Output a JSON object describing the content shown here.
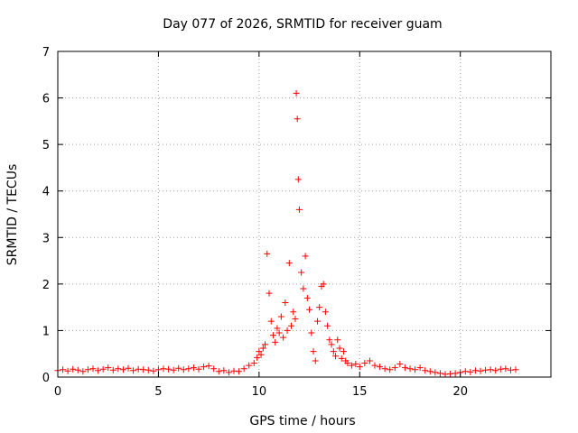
{
  "chart_data": {
    "type": "scatter",
    "title": "Day 077 of 2026, SRMTID for receiver guam",
    "xlabel": "GPS time / hours",
    "ylabel": "SRMTID / TECUs",
    "xlim": [
      0,
      24.5
    ],
    "ylim": [
      0,
      7
    ],
    "xticks": [
      0,
      5,
      10,
      15,
      20
    ],
    "yticks": [
      0,
      1,
      2,
      3,
      4,
      5,
      6,
      7
    ],
    "grid": true,
    "marker": "+",
    "color": "#ff0000",
    "series": [
      {
        "name": "SRMTID",
        "x": [
          0.0,
          0.25,
          0.5,
          0.75,
          1.0,
          1.25,
          1.5,
          1.75,
          2.0,
          2.25,
          2.5,
          2.75,
          3.0,
          3.25,
          3.5,
          3.75,
          4.0,
          4.25,
          4.5,
          4.75,
          5.0,
          5.25,
          5.5,
          5.75,
          6.0,
          6.25,
          6.5,
          6.75,
          7.0,
          7.25,
          7.5,
          7.75,
          8.0,
          8.25,
          8.5,
          8.75,
          9.0,
          9.25,
          9.5,
          9.75,
          9.9,
          10.0,
          10.1,
          10.2,
          10.3,
          10.4,
          10.5,
          10.6,
          10.7,
          10.8,
          10.9,
          11.0,
          11.1,
          11.2,
          11.3,
          11.4,
          11.5,
          11.6,
          11.7,
          11.8,
          11.85,
          11.9,
          11.95,
          12.0,
          12.1,
          12.2,
          12.3,
          12.4,
          12.5,
          12.6,
          12.7,
          12.8,
          12.9,
          13.0,
          13.1,
          13.2,
          13.3,
          13.4,
          13.5,
          13.6,
          13.7,
          13.8,
          13.9,
          14.0,
          14.1,
          14.2,
          14.3,
          14.4,
          14.6,
          14.8,
          15.0,
          15.25,
          15.5,
          15.75,
          16.0,
          16.25,
          16.5,
          16.75,
          17.0,
          17.25,
          17.5,
          17.75,
          18.0,
          18.25,
          18.5,
          18.75,
          19.0,
          19.25,
          19.5,
          19.75,
          20.0,
          20.25,
          20.5,
          20.75,
          21.0,
          21.25,
          21.5,
          21.75,
          22.0,
          22.25,
          22.5,
          22.75
        ],
        "y": [
          0.14,
          0.16,
          0.13,
          0.17,
          0.15,
          0.12,
          0.16,
          0.18,
          0.14,
          0.17,
          0.2,
          0.15,
          0.18,
          0.16,
          0.19,
          0.14,
          0.17,
          0.16,
          0.15,
          0.13,
          0.16,
          0.18,
          0.17,
          0.15,
          0.19,
          0.16,
          0.18,
          0.2,
          0.17,
          0.22,
          0.24,
          0.18,
          0.12,
          0.14,
          0.1,
          0.13,
          0.12,
          0.18,
          0.25,
          0.3,
          0.42,
          0.55,
          0.48,
          0.62,
          0.7,
          2.65,
          1.8,
          1.2,
          0.9,
          0.75,
          1.05,
          0.95,
          1.3,
          0.85,
          1.6,
          1.0,
          2.45,
          1.1,
          1.4,
          1.25,
          6.1,
          5.55,
          4.25,
          3.6,
          2.25,
          1.9,
          2.6,
          1.7,
          1.45,
          0.95,
          0.55,
          0.35,
          1.2,
          1.5,
          1.95,
          2.0,
          1.4,
          1.1,
          0.8,
          0.7,
          0.55,
          0.45,
          0.8,
          0.62,
          0.4,
          0.55,
          0.35,
          0.3,
          0.25,
          0.28,
          0.22,
          0.3,
          0.35,
          0.25,
          0.22,
          0.18,
          0.16,
          0.2,
          0.28,
          0.2,
          0.18,
          0.16,
          0.2,
          0.14,
          0.12,
          0.1,
          0.08,
          0.06,
          0.07,
          0.08,
          0.1,
          0.12,
          0.11,
          0.14,
          0.13,
          0.15,
          0.16,
          0.14,
          0.17,
          0.18,
          0.15,
          0.16
        ]
      }
    ]
  }
}
